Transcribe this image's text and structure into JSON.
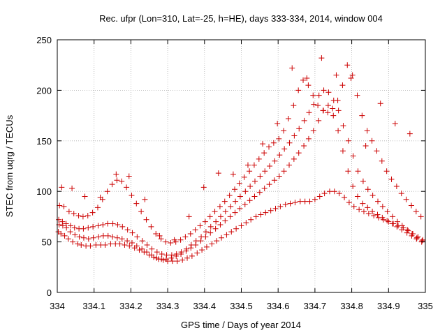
{
  "chart_data": {
    "type": "scatter",
    "title": "Rec. ufpr (Lon=310, Lat=-25, h=HE), days 333-334, 2014, window 004",
    "xlabel": "GPS time / Days of year 2014",
    "ylabel": "STEC from uqrg / TECUs",
    "xlim": [
      334,
      335
    ],
    "ylim": [
      0,
      250
    ],
    "xticks": [
      334,
      334.1,
      334.2,
      334.3,
      334.4,
      334.5,
      334.6,
      334.7,
      334.8,
      334.9,
      335
    ],
    "xtick_labels": [
      "334",
      "334.1",
      "334.2",
      "334.3",
      "334.4",
      "334.5",
      "334.6",
      "334.7",
      "334.8",
      "334.9",
      "335"
    ],
    "yticks": [
      0,
      50,
      100,
      150,
      200,
      250
    ],
    "ytick_labels": [
      "0",
      "50",
      "100",
      "150",
      "200",
      "250"
    ],
    "grid": true,
    "marker": "+",
    "color": "#cc0000",
    "series": [
      {
        "x": [
          334.003,
          334.01,
          334.02,
          334.03,
          334.042,
          334.055,
          334.065,
          334.078,
          334.09,
          334.105,
          334.118,
          334.13,
          334.145,
          334.158,
          334.17,
          334.183,
          334.196,
          334.21,
          334.223,
          334.236,
          334.25,
          334.262,
          334.275,
          334.288,
          334.3,
          334.313,
          334.326,
          334.34,
          334.353,
          334.366,
          334.38,
          334.393,
          334.406,
          334.42,
          334.433,
          334.446,
          334.46,
          334.473,
          334.486,
          334.5,
          334.513,
          334.526,
          334.54,
          334.553,
          334.566,
          334.58,
          334.593,
          334.606,
          334.62,
          334.633,
          334.646,
          334.66,
          334.673,
          334.686,
          334.7,
          334.713,
          334.726,
          334.74,
          334.753,
          334.766,
          334.78,
          334.793,
          334.806,
          334.82,
          334.833,
          334.846,
          334.86,
          334.873,
          334.886,
          334.9,
          334.913,
          334.926,
          334.94,
          334.953,
          334.966,
          334.98,
          334.993
        ],
        "y": [
          60,
          58,
          56,
          53,
          50,
          48,
          47,
          46,
          46,
          47,
          47,
          47,
          48,
          48,
          48,
          47,
          46,
          44,
          42,
          40,
          37,
          35,
          33,
          32,
          31,
          31,
          31,
          32,
          34,
          36,
          39,
          42,
          45,
          48,
          51,
          54,
          57,
          60,
          63,
          66,
          69,
          72,
          75,
          77,
          79,
          81,
          83,
          85,
          87,
          88,
          89,
          90,
          90,
          90,
          92,
          95,
          98,
          100,
          100,
          98,
          94,
          89,
          85,
          82,
          80,
          78,
          76,
          74,
          72,
          70,
          68,
          66,
          64,
          61,
          58,
          55,
          52
        ]
      },
      {
        "x": [
          334.005,
          334.015,
          334.025,
          334.035,
          334.048,
          334.06,
          334.072,
          334.085,
          334.098,
          334.112,
          334.125,
          334.138,
          334.15,
          334.163,
          334.176,
          334.19,
          334.203,
          334.216,
          334.23,
          334.243,
          334.256,
          334.27,
          334.283,
          334.296,
          334.31,
          334.323,
          334.336,
          334.35,
          334.363,
          334.376,
          334.39,
          334.403,
          334.416,
          334.43,
          334.443,
          334.456,
          334.47,
          334.483,
          334.496,
          334.51,
          334.523,
          334.536,
          334.55,
          334.563,
          334.576,
          334.59,
          334.603,
          334.616,
          334.63,
          334.643,
          334.656,
          334.67,
          334.683,
          334.696,
          334.71,
          334.723,
          334.736,
          334.75,
          334.763,
          334.776,
          334.79,
          334.803,
          334.816,
          334.83,
          334.843,
          334.856,
          334.87,
          334.883,
          334.896,
          334.91,
          334.923,
          334.936,
          334.95,
          334.963,
          334.976,
          334.99
        ],
        "y": [
          67,
          66,
          64,
          60,
          57,
          55,
          54,
          53,
          54,
          55,
          56,
          56,
          55,
          54,
          53,
          51,
          49,
          46,
          43,
          40,
          37,
          34,
          33,
          33,
          34,
          36,
          38,
          41,
          44,
          47,
          51,
          55,
          59,
          63,
          67,
          71,
          75,
          79,
          83,
          87,
          91,
          95,
          99,
          103,
          107,
          111,
          115,
          120,
          126,
          132,
          138,
          145,
          152,
          160,
          170,
          180,
          185,
          175,
          160,
          140,
          120,
          105,
          95,
          88,
          84,
          80,
          77,
          74,
          71,
          68,
          65,
          62,
          59,
          56,
          53,
          50
        ]
      },
      {
        "x": [
          334.004,
          334.014,
          334.024,
          334.036,
          334.047,
          334.059,
          334.071,
          334.084,
          334.097,
          334.111,
          334.124,
          334.137,
          334.151,
          334.164,
          334.177,
          334.191,
          334.204,
          334.217,
          334.231,
          334.244,
          334.257,
          334.271,
          334.284,
          334.297,
          334.311,
          334.324,
          334.337,
          334.351,
          334.364,
          334.377,
          334.391,
          334.404,
          334.417,
          334.431,
          334.444,
          334.457,
          334.471,
          334.484,
          334.497,
          334.511,
          334.524,
          334.537,
          334.551,
          334.564,
          334.577,
          334.591,
          334.604,
          334.617,
          334.631,
          334.644,
          334.657,
          334.671,
          334.684,
          334.697,
          334.711,
          334.724,
          334.737,
          334.751,
          334.764,
          334.777,
          334.791,
          334.804,
          334.817,
          334.831,
          334.844,
          334.857,
          334.871,
          334.884,
          334.897,
          334.911,
          334.924,
          334.937,
          334.951,
          334.964,
          334.977,
          334.991
        ],
        "y": [
          72,
          70,
          68,
          66,
          64,
          63,
          63,
          64,
          65,
          66,
          67,
          68,
          68,
          67,
          65,
          62,
          59,
          55,
          51,
          47,
          43,
          40,
          38,
          37,
          37,
          38,
          40,
          43,
          47,
          51,
          55,
          60,
          65,
          70,
          75,
          80,
          85,
          90,
          95,
          100,
          105,
          110,
          115,
          120,
          125,
          130,
          136,
          142,
          148,
          155,
          162,
          170,
          178,
          186,
          195,
          200,
          198,
          190,
          180,
          165,
          150,
          135,
          120,
          110,
          102,
          96,
          90,
          85,
          80,
          75,
          70,
          66,
          62,
          58,
          54,
          51
        ]
      },
      {
        "x": [
          334.006,
          334.018,
          334.032,
          334.045,
          334.058,
          334.07,
          334.083,
          334.096,
          334.11,
          334.123,
          334.136,
          334.149,
          334.162,
          334.175,
          334.188,
          334.202,
          334.215,
          334.228,
          334.242,
          334.255,
          334.268,
          334.282,
          334.295,
          334.308,
          334.322,
          334.335,
          334.348,
          334.362,
          334.375,
          334.388,
          334.402,
          334.415,
          334.428,
          334.442,
          334.455,
          334.468,
          334.482,
          334.495,
          334.508,
          334.522,
          334.535,
          334.548,
          334.562,
          334.575,
          334.588,
          334.602,
          334.615,
          334.628,
          334.642,
          334.655,
          334.668,
          334.682,
          334.695,
          334.708,
          334.722,
          334.735,
          334.748,
          334.762,
          334.775,
          334.788,
          334.802,
          334.815,
          334.828,
          334.842,
          334.855,
          334.868,
          334.882,
          334.895,
          334.908,
          334.922,
          334.935,
          334.948,
          334.962,
          334.975,
          334.988
        ],
        "y": [
          86,
          85,
          80,
          78,
          76,
          75,
          76,
          79,
          84,
          92,
          100,
          107,
          111,
          110,
          104,
          96,
          88,
          80,
          72,
          65,
          58,
          53,
          50,
          49,
          50,
          52,
          55,
          58,
          62,
          66,
          70,
          75,
          80,
          85,
          90,
          96,
          102,
          108,
          114,
          120,
          126,
          132,
          138,
          144,
          148,
          152,
          160,
          172,
          185,
          200,
          210,
          205,
          195,
          185,
          180,
          178,
          182,
          190,
          205,
          225,
          215,
          195,
          175,
          160,
          150,
          140,
          130,
          120,
          112,
          105,
          98,
          92,
          86,
          80,
          75
        ]
      },
      {
        "x": [
          334.012,
          334.04,
          334.075,
          334.117,
          334.16,
          334.195,
          334.238,
          334.278,
          334.318,
          334.358,
          334.398,
          334.438,
          334.478,
          334.518,
          334.558,
          334.598,
          334.638,
          334.678,
          334.718,
          334.758,
          334.798,
          334.838,
          334.878,
          334.918,
          334.958
        ],
        "y": [
          104,
          103,
          95,
          94,
          117,
          115,
          92,
          56,
          52,
          75,
          104,
          118,
          117,
          126,
          147,
          167,
          222,
          212,
          232,
          215,
          212,
          145,
          187,
          167,
          157
        ]
      }
    ]
  }
}
